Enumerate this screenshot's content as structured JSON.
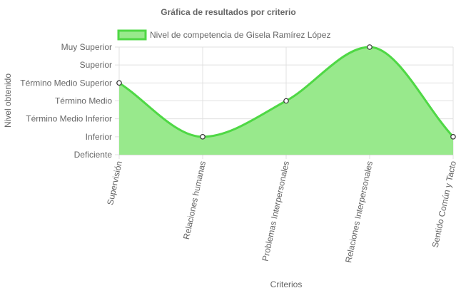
{
  "chart_data": {
    "type": "area",
    "title": "Gráfica de resultados por criterio",
    "xlabel": "Criterios",
    "ylabel": "Nivel obtenido",
    "categories": [
      "Supervisión",
      "Relaciones humanas",
      "Problemas Interpersonales",
      "Relaciones Interpersonales",
      "Sentido Común y Tacto"
    ],
    "y_levels": [
      "Deficiente",
      "Inferior",
      "Término Medio Inferior",
      "Término Medio",
      "Término Medio Superior",
      "Superior",
      "Muy Superior"
    ],
    "series": [
      {
        "name": "Nivel de competencia de Gisela Ramírez López",
        "values": [
          4,
          1,
          3,
          6,
          1
        ],
        "value_labels": [
          "Término Medio Superior",
          "Inferior",
          "Término Medio",
          "Muy Superior",
          "Inferior"
        ]
      }
    ],
    "ylim": [
      0,
      6
    ],
    "grid": true,
    "legend_position": "top",
    "colors": {
      "fill": "#98e98c",
      "line": "#4fd845",
      "grid": "#e0e0e0",
      "text": "#666666"
    }
  }
}
